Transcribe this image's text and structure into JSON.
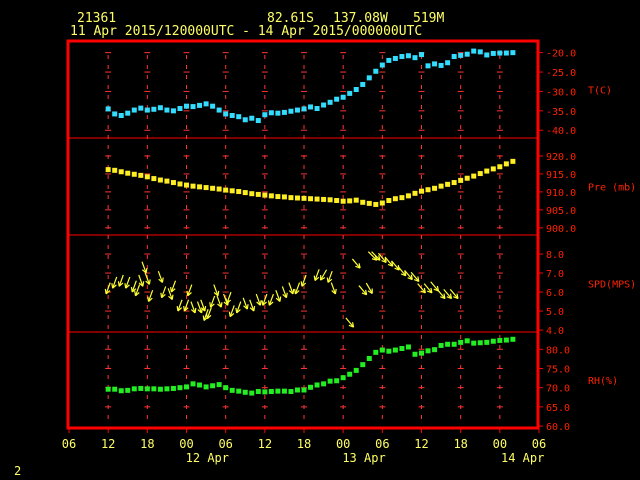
{
  "header": {
    "station": "21361",
    "lat": "82.61S",
    "lon": "137.08W",
    "elev": "519M",
    "period": "11 Apr 2015/120000UTC - 14 Apr 2015/000000UTC"
  },
  "page_number": "2",
  "colors": {
    "frame": "#ff0000",
    "grid": "#ff3333",
    "axis_text": "#ffff66",
    "right_labels": "#ff2200",
    "temperature": "#33ddff",
    "pressure": "#ffee22",
    "wind": "#ffff33",
    "humidity": "#22ee22"
  },
  "chart_data": {
    "type": "scatter",
    "x_axis": {
      "ticks": [
        "06",
        "12",
        "18",
        "00",
        "06",
        "12",
        "18",
        "00",
        "06",
        "12",
        "18",
        "00",
        "06"
      ],
      "day_labels": [
        "12 Apr",
        "13 Apr",
        "14 Apr"
      ],
      "range_hours_from_11Apr00": [
        6,
        78
      ]
    },
    "panels": [
      {
        "name": "temperature",
        "label": "T(C)",
        "ticks": [
          "-20.0",
          "-25.0",
          "-30.0",
          "-35.0",
          "-40.0"
        ],
        "tick_values": [
          -20,
          -25,
          -30,
          -35,
          -40
        ],
        "ylim": [
          -42,
          -17
        ],
        "x": [
          12,
          13,
          14,
          15,
          16,
          17,
          18,
          19,
          20,
          21,
          22,
          23,
          24,
          25,
          26,
          27,
          28,
          29,
          30,
          31,
          32,
          33,
          34,
          35,
          36,
          37,
          38,
          39,
          40,
          41,
          42,
          43,
          44,
          45,
          46,
          47,
          48,
          49,
          50,
          51,
          52,
          53,
          54,
          55,
          56,
          57,
          58,
          59,
          60,
          61,
          62,
          63,
          64,
          65,
          66,
          67,
          68,
          69,
          70,
          71,
          72,
          73,
          74
        ],
        "values": [
          -34.5,
          -35.8,
          -36.2,
          -35.6,
          -34.8,
          -34.3,
          -34.8,
          -34.6,
          -34.2,
          -34.8,
          -35.0,
          -34.4,
          -33.8,
          -33.9,
          -33.6,
          -33.2,
          -33.8,
          -34.8,
          -35.8,
          -36.2,
          -36.5,
          -37.3,
          -36.9,
          -37.5,
          -36.0,
          -35.5,
          -35.6,
          -35.4,
          -35.1,
          -34.8,
          -34.5,
          -34.0,
          -34.4,
          -33.5,
          -32.8,
          -32.0,
          -31.5,
          -30.5,
          -29.5,
          -28.2,
          -26.5,
          -24.8,
          -23.2,
          -22.0,
          -21.5,
          -21.0,
          -20.8,
          -21.3,
          -20.5,
          -23.4,
          -22.9,
          -23.3,
          -22.6,
          -21.0,
          -20.7,
          -20.4,
          -19.6,
          -19.8,
          -20.6,
          -20.2,
          -20.1,
          -20.1,
          -20.0
        ]
      },
      {
        "name": "pressure",
        "label": "Pre (mb)",
        "ticks": [
          "920.0",
          "915.0",
          "910.0",
          "905.0",
          "900.0"
        ],
        "tick_values": [
          920,
          915,
          910,
          905,
          900
        ],
        "ylim": [
          898,
          925
        ],
        "x": [
          12,
          13,
          14,
          15,
          16,
          17,
          18,
          19,
          20,
          21,
          22,
          23,
          24,
          25,
          26,
          27,
          28,
          29,
          30,
          31,
          32,
          33,
          34,
          35,
          36,
          37,
          38,
          39,
          40,
          41,
          42,
          43,
          44,
          45,
          46,
          47,
          48,
          49,
          50,
          51,
          52,
          53,
          54,
          55,
          56,
          57,
          58,
          59,
          60,
          61,
          62,
          63,
          64,
          65,
          66,
          67,
          68,
          69,
          70,
          71,
          72,
          73,
          74
        ],
        "values": [
          916.2,
          916.0,
          915.6,
          915.2,
          914.9,
          914.6,
          914.2,
          913.7,
          913.3,
          913.0,
          912.6,
          912.2,
          911.9,
          911.6,
          911.4,
          911.2,
          911.0,
          910.8,
          910.5,
          910.3,
          910.1,
          909.8,
          909.5,
          909.3,
          909.1,
          908.9,
          908.7,
          908.6,
          908.4,
          908.3,
          908.2,
          908.1,
          908.0,
          907.9,
          907.8,
          907.6,
          907.4,
          907.5,
          907.7,
          907.1,
          906.8,
          906.5,
          906.9,
          907.6,
          908.1,
          908.4,
          908.9,
          909.6,
          910.2,
          910.6,
          911.0,
          911.6,
          912.1,
          912.6,
          913.2,
          913.8,
          914.4,
          915.1,
          915.8,
          916.4,
          917.0,
          917.8,
          918.5
        ]
      },
      {
        "name": "wind",
        "label": "SPD(MPS)",
        "ticks": [
          "8.0",
          "7.0",
          "6.0",
          "5.0",
          "4.0"
        ],
        "tick_values": [
          8,
          7,
          6,
          5,
          4
        ],
        "ylim": [
          3.9,
          9.0
        ],
        "x": [
          12,
          13,
          14,
          15,
          16,
          16.5,
          17,
          17.5,
          18,
          18.5,
          20,
          20.5,
          21.5,
          22,
          23,
          24,
          24.5,
          25,
          26,
          26.5,
          27,
          27.5,
          28,
          28.5,
          29,
          30,
          30.5,
          31,
          32,
          33,
          34,
          35,
          36,
          37,
          38,
          39,
          40,
          41,
          42,
          44,
          45,
          46,
          46.5,
          49,
          50,
          51,
          52,
          52.5,
          53,
          54,
          55,
          56,
          57,
          58,
          59,
          60,
          61,
          62,
          63,
          64,
          65
        ],
        "values": [
          6.2,
          6.5,
          6.6,
          6.5,
          6.3,
          6.1,
          6.6,
          7.3,
          6.7,
          5.8,
          6.8,
          6.0,
          5.9,
          6.3,
          5.3,
          5.3,
          6.1,
          5.2,
          5.2,
          5.3,
          4.8,
          4.9,
          5.5,
          6.1,
          5.5,
          5.6,
          5.7,
          5.0,
          5.2,
          5.4,
          5.3,
          5.6,
          5.6,
          5.6,
          5.8,
          6.0,
          6.2,
          6.2,
          6.6,
          6.9,
          6.9,
          6.8,
          6.2,
          4.4,
          7.5,
          6.1,
          6.2,
          7.9,
          7.9,
          7.8,
          7.6,
          7.4,
          7.1,
          6.9,
          6.8,
          6.2,
          6.2,
          6.3,
          5.9,
          5.9,
          5.9
        ],
        "arrow_directions_deg": [
          200,
          200,
          200,
          200,
          200,
          200,
          160,
          160,
          160,
          200,
          160,
          200,
          160,
          200,
          200,
          200,
          200,
          160,
          160,
          160,
          200,
          200,
          200,
          160,
          160,
          160,
          200,
          200,
          200,
          160,
          160,
          160,
          200,
          200,
          160,
          160,
          160,
          200,
          200,
          200,
          210,
          200,
          160,
          140,
          140,
          140,
          150,
          135,
          135,
          140,
          140,
          140,
          140,
          140,
          140,
          140,
          140,
          140,
          140,
          140,
          140
        ]
      },
      {
        "name": "humidity",
        "label": "RH(%)",
        "ticks": [
          "80.0",
          "75.0",
          "70.0",
          "65.0",
          "60.0"
        ],
        "tick_values": [
          80,
          75,
          70,
          65,
          60
        ],
        "ylim": [
          59.5,
          84.5
        ],
        "x": [
          12,
          13,
          14,
          15,
          16,
          17,
          18,
          19,
          20,
          21,
          22,
          23,
          24,
          25,
          26,
          27,
          28,
          29,
          30,
          31,
          32,
          33,
          34,
          35,
          36,
          37,
          38,
          39,
          40,
          41,
          42,
          43,
          44,
          45,
          46,
          47,
          48,
          49,
          50,
          51,
          52,
          53,
          54,
          55,
          56,
          57,
          58,
          59,
          60,
          61,
          62,
          63,
          64,
          65,
          66,
          67,
          68,
          69,
          70,
          71,
          72,
          73,
          74
        ],
        "values": [
          69.6,
          69.6,
          69.2,
          69.3,
          69.7,
          69.8,
          69.7,
          69.7,
          69.6,
          69.7,
          69.8,
          70.0,
          70.2,
          71.0,
          70.7,
          70.2,
          70.5,
          70.8,
          70.0,
          69.3,
          69.1,
          68.8,
          68.6,
          69.0,
          68.9,
          69.0,
          69.1,
          69.1,
          69.0,
          69.4,
          69.4,
          70.1,
          70.7,
          71.0,
          71.7,
          71.8,
          72.6,
          73.5,
          74.5,
          76.0,
          77.6,
          79.2,
          79.8,
          79.5,
          79.8,
          80.2,
          80.6,
          78.7,
          79.0,
          79.6,
          79.9,
          81.0,
          81.3,
          81.3,
          81.8,
          82.2,
          81.6,
          81.7,
          81.8,
          82.1,
          82.3,
          82.4,
          82.6
        ]
      }
    ]
  }
}
